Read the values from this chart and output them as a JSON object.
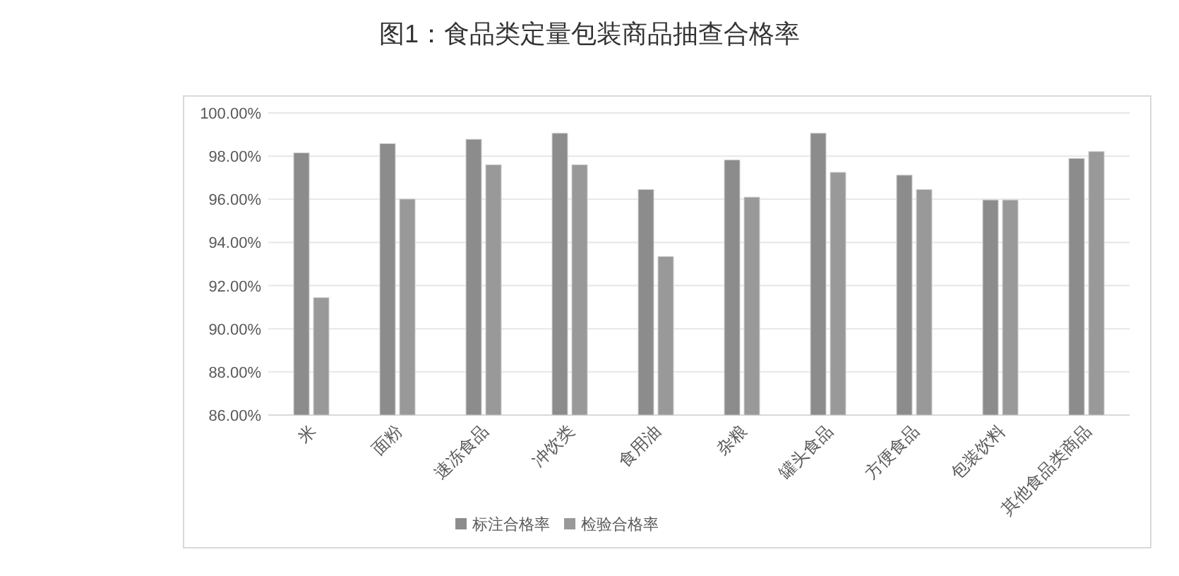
{
  "chart_data": {
    "type": "bar",
    "title": "图1：食品类定量包装商品抽查合格率",
    "categories": [
      "米",
      "面粉",
      "速冻食品",
      "冲饮类",
      "食用油",
      "杂粮",
      "罐头食品",
      "方便食品",
      "包装饮料",
      "其他食品类商品"
    ],
    "series": [
      {
        "name": "标注合格率",
        "color": "#8c8c8c",
        "values": [
          98.15,
          98.58,
          98.78,
          99.06,
          96.45,
          97.82,
          99.06,
          97.12,
          95.97,
          97.89
        ]
      },
      {
        "name": "检验合格率",
        "color": "#999999",
        "values": [
          91.44,
          96.01,
          97.6,
          97.6,
          93.35,
          96.1,
          97.25,
          96.45,
          95.97,
          98.21
        ]
      }
    ],
    "ylim": [
      86,
      100
    ],
    "yticks": [
      {
        "value": 86,
        "label": "86.00%"
      },
      {
        "value": 88,
        "label": "88.00%"
      },
      {
        "value": 90,
        "label": "90.00%"
      },
      {
        "value": 92,
        "label": "92.00%"
      },
      {
        "value": 94,
        "label": "94.00%"
      },
      {
        "value": 96,
        "label": "96.00%"
      },
      {
        "value": 98,
        "label": "98.00%"
      },
      {
        "value": 100,
        "label": "100.00%"
      }
    ],
    "grid": "y",
    "legend": "bottom"
  }
}
